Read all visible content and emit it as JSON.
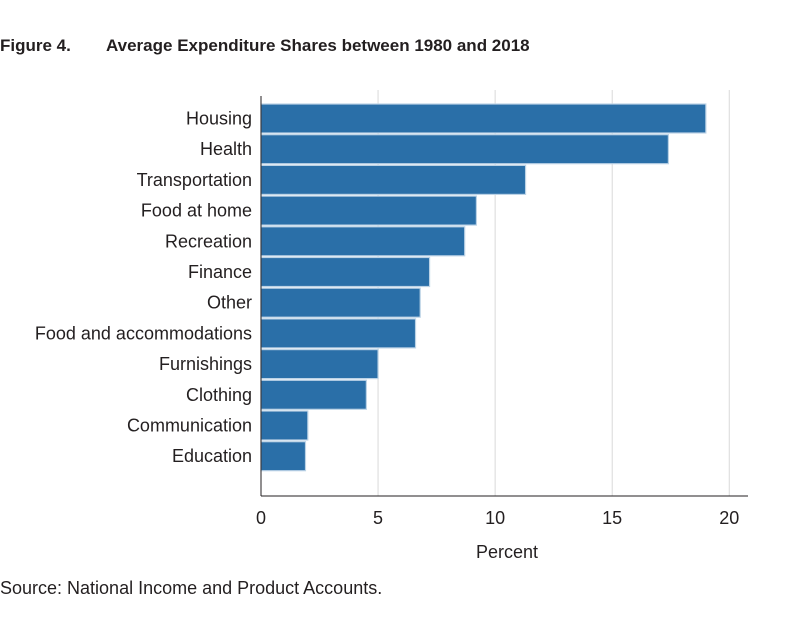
{
  "figure": {
    "number": "Figure 4.",
    "title": "Average Expenditure Shares between 1980 and 2018"
  },
  "source": "Source: National Income and Product Accounts.",
  "colors": {
    "bar": "#2a6fa8",
    "bar_edge": "#bcd3e6",
    "grid": "#d9d9d9",
    "axis": "#231f20"
  },
  "chart_data": {
    "type": "bar",
    "orientation": "horizontal",
    "categories": [
      "Housing",
      "Health",
      "Transportation",
      "Food at home",
      "Recreation",
      "Finance",
      "Other",
      "Food and accommodations",
      "Furnishings",
      "Clothing",
      "Communication",
      "Education"
    ],
    "values": [
      19.0,
      17.4,
      11.3,
      9.2,
      8.7,
      7.2,
      6.8,
      6.6,
      5.0,
      4.5,
      2.0,
      1.9
    ],
    "xlabel": "Percent",
    "xlim": [
      0,
      20.8
    ],
    "xticks": [
      "0",
      "5",
      "10",
      "15",
      "20"
    ],
    "grid": "vertical"
  }
}
